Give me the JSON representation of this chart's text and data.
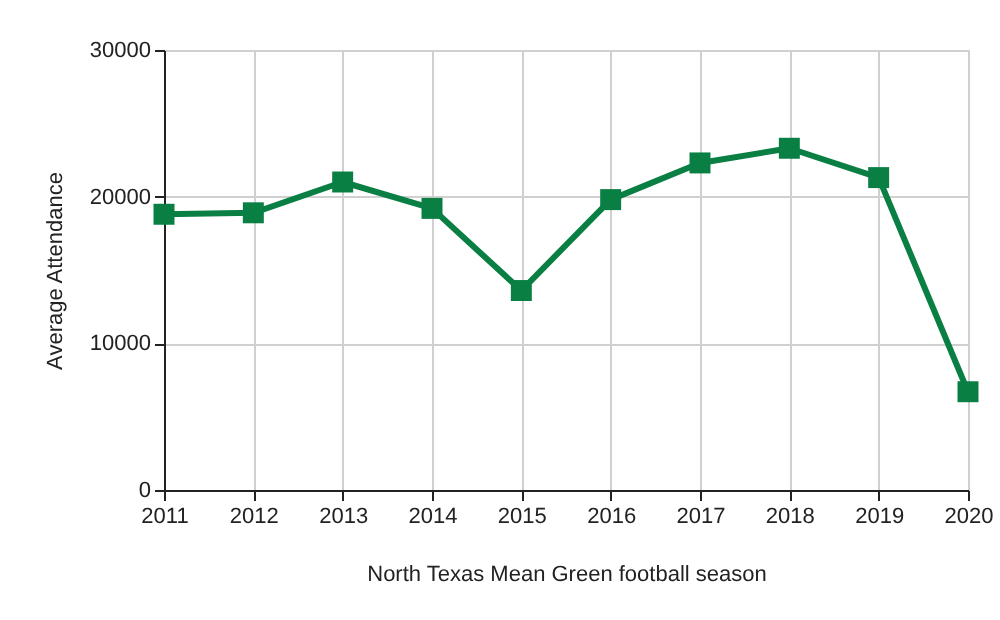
{
  "chart_data": {
    "type": "line",
    "xlabel": "North Texas Mean Green football season",
    "ylabel": "Average Attendance",
    "x": [
      2011,
      2012,
      2013,
      2014,
      2015,
      2016,
      2017,
      2018,
      2019,
      2020
    ],
    "series": [
      {
        "color": "#0a7f44",
        "values": [
          18800,
          18900,
          21000,
          19200,
          13600,
          19800,
          22300,
          23300,
          21300,
          6700
        ]
      }
    ],
    "xlim": [
      2011,
      2020
    ],
    "xticks": [
      2011,
      2012,
      2013,
      2014,
      2015,
      2016,
      2017,
      2018,
      2019,
      2020
    ],
    "ylim": [
      0,
      30000
    ],
    "yticks": [
      0,
      10000,
      20000,
      30000
    ],
    "grid": true,
    "marker": "square",
    "line_style": "solid"
  }
}
